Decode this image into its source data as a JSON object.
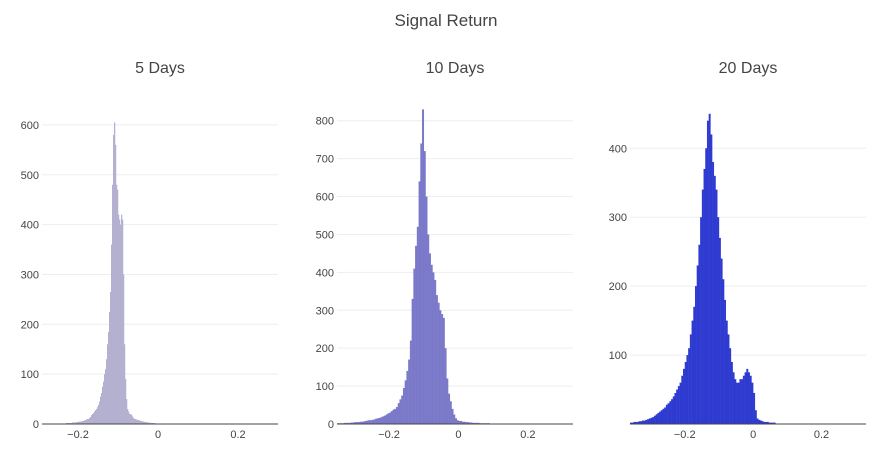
{
  "title": "Signal Return",
  "chart_data": [
    {
      "type": "histogram",
      "title": "5 Days",
      "color": "#b4b0d0",
      "xlim": [
        -0.29,
        0.3
      ],
      "ylim": [
        0,
        650
      ],
      "yticks": [
        0,
        100,
        200,
        300,
        400,
        500,
        600
      ],
      "xticks": [
        -0.2,
        0,
        0.2
      ],
      "xtick_labels": [
        "−0.2",
        "0",
        "0.2"
      ],
      "bin_start": -0.25,
      "bin_width": 0.0025,
      "counts": [
        1,
        1,
        1,
        1,
        1,
        1,
        1,
        1,
        2,
        2,
        2,
        2,
        2,
        2,
        3,
        3,
        3,
        3,
        4,
        4,
        4,
        5,
        5,
        5,
        6,
        6,
        7,
        8,
        9,
        10,
        10,
        12,
        14,
        18,
        20,
        22,
        25,
        28,
        30,
        34,
        38,
        45,
        55,
        62,
        75,
        85,
        100,
        110,
        130,
        160,
        185,
        225,
        265,
        360,
        480,
        580,
        605,
        560,
        480,
        470,
        420,
        410,
        400,
        420,
        410,
        300,
        160,
        90,
        50,
        30,
        25,
        20,
        20,
        18,
        15,
        12,
        10,
        10,
        9,
        8,
        8,
        7,
        6,
        6,
        5,
        5,
        4,
        4,
        4,
        3,
        3,
        3,
        2,
        2,
        2,
        2,
        2,
        1,
        1,
        1,
        1,
        1,
        1,
        1,
        1,
        1
      ]
    },
    {
      "type": "histogram",
      "title": "10 Days",
      "color": "#7b79c9",
      "xlim": [
        -0.35,
        0.33
      ],
      "ylim": [
        0,
        860
      ],
      "yticks": [
        0,
        100,
        200,
        300,
        400,
        500,
        600,
        700,
        800
      ],
      "xticks": [
        -0.2,
        0,
        0.2
      ],
      "xtick_labels": [
        "−0.2",
        "0",
        "0.2"
      ],
      "bin_start": -0.35,
      "bin_width": 0.005,
      "counts": [
        2,
        2,
        2,
        2,
        3,
        3,
        3,
        3,
        4,
        4,
        5,
        5,
        5,
        6,
        6,
        7,
        8,
        9,
        10,
        10,
        11,
        12,
        14,
        15,
        16,
        18,
        20,
        22,
        25,
        28,
        30,
        34,
        38,
        40,
        45,
        55,
        65,
        75,
        95,
        115,
        140,
        170,
        220,
        330,
        410,
        470,
        520,
        640,
        740,
        830,
        720,
        600,
        500,
        450,
        420,
        400,
        380,
        340,
        320,
        300,
        290,
        280,
        200,
        120,
        80,
        60,
        40,
        25,
        15,
        10,
        8,
        8,
        6,
        6,
        5,
        5,
        4,
        4,
        3,
        3,
        3,
        3,
        2,
        2,
        2,
        2,
        2,
        2
      ]
    },
    {
      "type": "histogram",
      "title": "20 Days",
      "color": "#2f3bd0",
      "xlim": [
        -0.36,
        0.33
      ],
      "ylim": [
        0,
        470
      ],
      "yticks": [
        100,
        200,
        300,
        400
      ],
      "xticks": [
        -0.2,
        0,
        0.2
      ],
      "xtick_labels": [
        "−0.2",
        "0",
        "0.2"
      ],
      "bin_start": -0.36,
      "bin_width": 0.005,
      "counts": [
        2,
        2,
        3,
        3,
        3,
        4,
        4,
        5,
        5,
        6,
        7,
        8,
        9,
        10,
        12,
        14,
        16,
        18,
        20,
        22,
        24,
        28,
        30,
        33,
        36,
        40,
        45,
        50,
        55,
        60,
        70,
        80,
        90,
        100,
        110,
        130,
        150,
        170,
        200,
        230,
        260,
        300,
        340,
        370,
        400,
        440,
        450,
        420,
        380,
        360,
        340,
        300,
        270,
        240,
        210,
        180,
        150,
        130,
        110,
        90,
        75,
        65,
        60,
        60,
        65,
        65,
        70,
        75,
        80,
        75,
        70,
        60,
        45,
        20,
        8,
        6,
        5,
        4,
        3,
        3,
        3,
        2,
        2,
        2,
        2
      ]
    }
  ]
}
